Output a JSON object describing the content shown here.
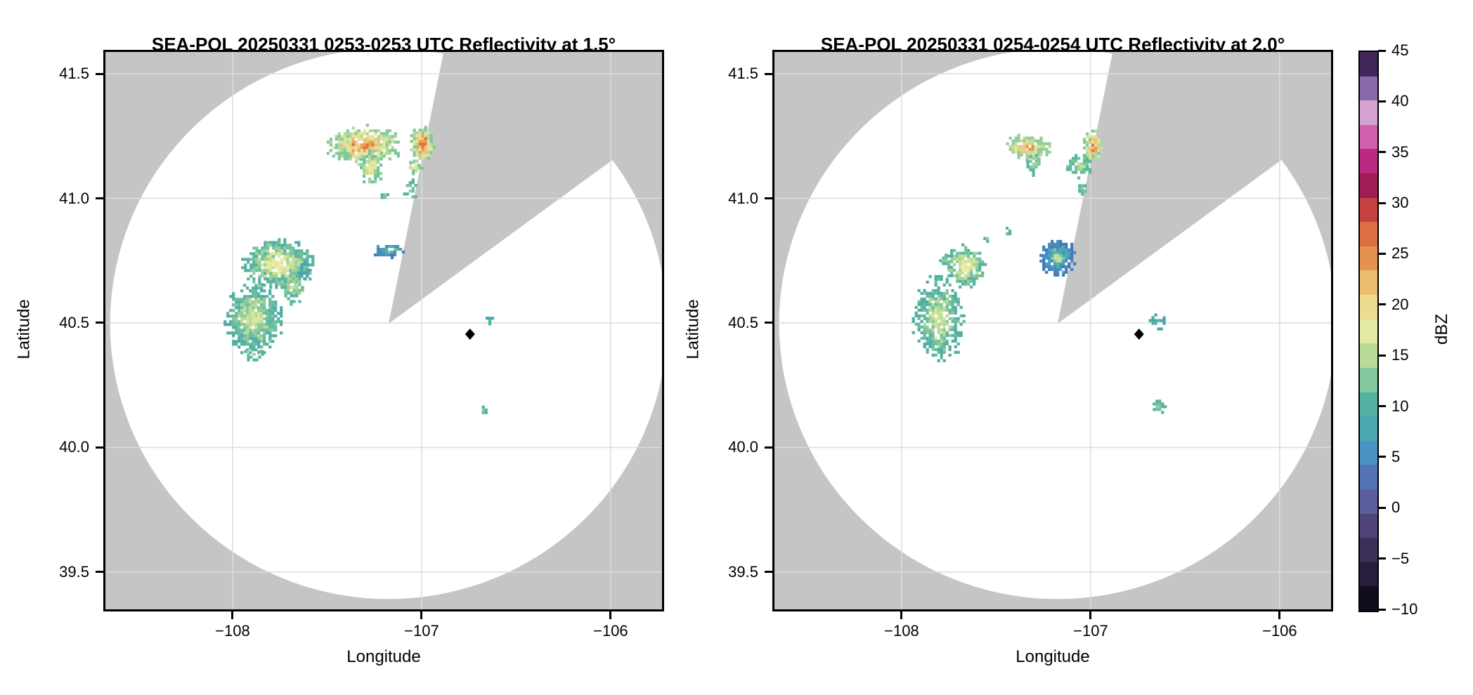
{
  "colors": {
    "outside_coverage_gray": "#c5c5c5",
    "coverage_white": "#ffffff",
    "gridline": "#dcdcdc",
    "spine": "#000000",
    "marker": "#000000"
  },
  "palettes": {
    "orangecore": [
      "#dc7544",
      "#e8a057",
      "#ecc377",
      "#e9e098",
      "#d9e69d",
      "#b0d89b",
      "#82c79c"
    ],
    "bandorange": [
      "#e29050",
      "#e7cf85",
      "#dfe89e",
      "#bedd9b",
      "#94cd9c"
    ],
    "yellow": [
      "#ebe8a0",
      "#dce79d",
      "#bedd9b",
      "#9ad09c",
      "#74c29d"
    ],
    "paleyellowcore": [
      "#eceda9",
      "#dfe89e",
      "#c3df9b",
      "#9ed19c",
      "#74c29d",
      "#55b2a2"
    ],
    "green_y": [
      "#c8e09b",
      "#a4d49b",
      "#7cc59c",
      "#5bb7a0"
    ],
    "green": [
      "#94cd9c",
      "#6fc09d",
      "#55b2a2"
    ],
    "greenbig": [
      "#d7e59c",
      "#b7db9c",
      "#8cca9c",
      "#66bc9e",
      "#50afa4"
    ],
    "blueedge": [
      "#c0de9b",
      "#86c89c",
      "#55b2a2",
      "#48a4b6",
      "#4a8ac2",
      "#4279bc"
    ],
    "teal": [
      "#54b3a4",
      "#4caba8",
      "#49a3b2"
    ]
  },
  "colorbar": {
    "label": "dBZ",
    "range": [
      -10,
      45
    ],
    "tick_values": [
      45,
      40,
      35,
      30,
      25,
      20,
      15,
      10,
      5,
      0,
      -5,
      -10
    ],
    "tick_labels": [
      "45",
      "40",
      "35",
      "30",
      "25",
      "20",
      "15",
      "10",
      "5",
      "0",
      "−5",
      "−10"
    ],
    "bands_bottom_to_top": [
      "#120d1d",
      "#281e3b",
      "#3c2f58",
      "#4f4379",
      "#5c5f9c",
      "#5574b5",
      "#4b93c0",
      "#49a7b2",
      "#54b2a2",
      "#83c79c",
      "#b9db9a",
      "#e2eaa3",
      "#ecdc90",
      "#ecbd6c",
      "#e5924f",
      "#dc6f44",
      "#c4413f",
      "#9e1d55",
      "#bb2a80",
      "#d060ae",
      "#d5a3d2",
      "#8a68ac",
      "#3f2759"
    ]
  },
  "chart_data": [
    {
      "type": "heatmap",
      "subtype": "radar_ppi_reflectivity",
      "title": "SEA-POL 20250331 0253-0253 UTC Reflectivity at 1.5°",
      "radar_name": "SEA-POL",
      "date": "20250331",
      "time_utc": "0253-0253",
      "elevation_deg": 1.5,
      "field": "Reflectivity",
      "units": "dBZ",
      "xlabel": "Longitude",
      "ylabel": "Latitude",
      "xlim": [
        -108.684,
        -105.717
      ],
      "ylim": [
        39.342,
        41.596
      ],
      "xticks": [
        -108,
        -107,
        -106
      ],
      "xtick_labels": [
        "−108",
        "−107",
        "−106"
      ],
      "yticks": [
        41.5,
        41.0,
        40.5,
        40.0,
        39.5
      ],
      "ytick_labels": [
        "41.5",
        "41.0",
        "40.5",
        "40.0",
        "39.5"
      ],
      "grid": true,
      "colorbar_range": [
        -10,
        45
      ],
      "radar": {
        "lon": -107.175,
        "lat": 40.497,
        "coverage_rlon_deg": 1.473,
        "coverage_rlat_deg": 1.105
      },
      "blocked_sector": {
        "apex": [
          -107.175,
          40.497
        ],
        "edge1_to": [
          -106.881,
          41.596
        ],
        "edge2_to": [
          -105.717,
          41.306
        ]
      },
      "marker": {
        "lon": -106.744,
        "lat": 40.455,
        "shape": "diamond"
      },
      "cells": [
        {
          "id": "nw-cluster",
          "lon": -107.305,
          "lat": 41.212,
          "rlon": 0.175,
          "rlat": 0.07,
          "palette": "orangecore",
          "density": 0.93,
          "seed": 11,
          "dbz_range": [
            10,
            27
          ]
        },
        {
          "id": "nw-tail",
          "lon": -107.264,
          "lat": 41.125,
          "rlon": 0.055,
          "rlat": 0.065,
          "palette": "yellow",
          "density": 0.82,
          "seed": 12,
          "dbz_range": [
            10,
            18
          ]
        },
        {
          "id": "ne-cell",
          "lon": -106.993,
          "lat": 41.215,
          "rlon": 0.06,
          "rlat": 0.07,
          "palette": "orangecore",
          "density": 0.95,
          "seed": 13,
          "dbz_range": [
            12,
            28
          ]
        },
        {
          "id": "ne-cell-south",
          "lon": -107.037,
          "lat": 41.127,
          "rlon": 0.036,
          "rlat": 0.028,
          "palette": "yellow",
          "density": 0.8,
          "seed": 14,
          "dbz_range": [
            10,
            16
          ]
        },
        {
          "id": "ne-specks",
          "lon": -107.056,
          "lat": 41.03,
          "rlon": 0.034,
          "rlat": 0.044,
          "palette": "green",
          "density": 0.5,
          "seed": 15,
          "dbz_range": [
            7,
            12
          ]
        },
        {
          "id": "speck-north",
          "lon": -107.19,
          "lat": 41.012,
          "rlon": 0.016,
          "rlat": 0.012,
          "palette": "green",
          "density": 0.8,
          "seed": 16,
          "dbz_range": [
            7,
            10
          ]
        },
        {
          "id": "west-cluster",
          "lon": -107.757,
          "lat": 40.733,
          "rlon": 0.175,
          "rlat": 0.09,
          "palette": "paleyellowcore",
          "density": 0.88,
          "seed": 17,
          "dbz_range": [
            8,
            18
          ]
        },
        {
          "id": "west-cluster-south",
          "lon": -107.684,
          "lat": 40.648,
          "rlon": 0.065,
          "rlat": 0.062,
          "palette": "green_y",
          "density": 0.62,
          "seed": 18,
          "dbz_range": [
            8,
            14
          ]
        },
        {
          "id": "west-teal",
          "lon": -107.617,
          "lat": 40.71,
          "rlon": 0.032,
          "rlat": 0.035,
          "palette": "teal",
          "density": 0.85,
          "seed": 19,
          "dbz_range": [
            6,
            10
          ]
        },
        {
          "id": "center-blue-cell",
          "lon": -107.171,
          "lat": 40.79,
          "rlon": 0.074,
          "rlat": 0.028,
          "palette": "blueedge",
          "density": 0.92,
          "seed": 20,
          "dbz_range": [
            4,
            16
          ]
        },
        {
          "id": "sw-cluster",
          "lon": -107.888,
          "lat": 40.513,
          "rlon": 0.137,
          "rlat": 0.127,
          "palette": "greenbig",
          "density": 0.9,
          "seed": 21,
          "dbz_range": [
            7,
            17
          ]
        },
        {
          "id": "sw-tail",
          "lon": -107.881,
          "lat": 40.376,
          "rlon": 0.05,
          "rlat": 0.032,
          "palette": "green",
          "density": 0.55,
          "seed": 22,
          "dbz_range": [
            7,
            12
          ]
        },
        {
          "id": "near-marker-specks",
          "lon": -106.63,
          "lat": 40.51,
          "rlon": 0.024,
          "rlat": 0.02,
          "palette": "teal",
          "density": 0.5,
          "seed": 23,
          "dbz_range": [
            6,
            10
          ]
        },
        {
          "id": "south-speck",
          "lon": -106.67,
          "lat": 40.148,
          "rlon": 0.018,
          "rlat": 0.013,
          "palette": "green",
          "density": 0.85,
          "seed": 24,
          "dbz_range": [
            7,
            11
          ]
        }
      ]
    },
    {
      "type": "heatmap",
      "subtype": "radar_ppi_reflectivity",
      "title": "SEA-POL 20250331 0254-0254 UTC Reflectivity at 2.0°",
      "radar_name": "SEA-POL",
      "date": "20250331",
      "time_utc": "0254-0254",
      "elevation_deg": 2.0,
      "field": "Reflectivity",
      "units": "dBZ",
      "xlabel": "Longitude",
      "ylabel": "Latitude",
      "xlim": [
        -108.684,
        -105.717
      ],
      "ylim": [
        39.342,
        41.596
      ],
      "xticks": [
        -108,
        -107,
        -106
      ],
      "xtick_labels": [
        "−108",
        "−107",
        "−106"
      ],
      "yticks": [
        41.5,
        41.0,
        40.5,
        40.0,
        39.5
      ],
      "ytick_labels": [
        "41.5",
        "41.0",
        "40.5",
        "40.0",
        "39.5"
      ],
      "grid": true,
      "colorbar_range": [
        -10,
        45
      ],
      "radar": {
        "lon": -107.175,
        "lat": 40.497,
        "coverage_rlon_deg": 1.473,
        "coverage_rlat_deg": 1.105
      },
      "blocked_sector": {
        "apex": [
          -107.175,
          40.497
        ],
        "edge1_to": [
          -106.881,
          41.596
        ],
        "edge2_to": [
          -105.717,
          41.306
        ]
      },
      "marker": {
        "lon": -106.744,
        "lat": 40.455,
        "shape": "diamond"
      },
      "cells": [
        {
          "id": "nw-band",
          "lon": -107.335,
          "lat": 41.206,
          "rlon": 0.105,
          "rlat": 0.047,
          "palette": "bandorange",
          "density": 0.9,
          "seed": 31,
          "dbz_range": [
            10,
            23
          ]
        },
        {
          "id": "nw-band-tail",
          "lon": -107.3,
          "lat": 41.14,
          "rlon": 0.032,
          "rlat": 0.042,
          "palette": "green_y",
          "density": 0.62,
          "seed": 32,
          "dbz_range": [
            8,
            14
          ]
        },
        {
          "id": "ne-cell",
          "lon": -106.985,
          "lat": 41.21,
          "rlon": 0.048,
          "rlat": 0.06,
          "palette": "orangecore",
          "density": 0.95,
          "seed": 33,
          "dbz_range": [
            12,
            28
          ]
        },
        {
          "id": "ne-cell-southwest",
          "lon": -107.06,
          "lat": 41.13,
          "rlon": 0.062,
          "rlat": 0.042,
          "palette": "green_y",
          "density": 0.75,
          "seed": 34,
          "dbz_range": [
            8,
            16
          ]
        },
        {
          "id": "ne-speck",
          "lon": -107.045,
          "lat": 41.04,
          "rlon": 0.028,
          "rlat": 0.022,
          "palette": "green",
          "density": 0.7,
          "seed": 35,
          "dbz_range": [
            7,
            11
          ]
        },
        {
          "id": "west-cluster",
          "lon": -107.665,
          "lat": 40.725,
          "rlon": 0.1,
          "rlat": 0.077,
          "palette": "paleyellowcore",
          "density": 0.85,
          "seed": 36,
          "dbz_range": [
            8,
            17
          ]
        },
        {
          "id": "west-specks",
          "lon": -107.77,
          "lat": 40.753,
          "rlon": 0.024,
          "rlat": 0.019,
          "palette": "green",
          "density": 0.7,
          "seed": 37,
          "dbz_range": [
            7,
            11
          ]
        },
        {
          "id": "north-speck-1",
          "lon": -107.539,
          "lat": 40.835,
          "rlon": 0.021,
          "rlat": 0.015,
          "palette": "green",
          "density": 0.68,
          "seed": 38,
          "dbz_range": [
            7,
            11
          ]
        },
        {
          "id": "north-speck-2",
          "lon": -107.438,
          "lat": 40.866,
          "rlon": 0.017,
          "rlat": 0.013,
          "palette": "green",
          "density": 0.72,
          "seed": 39,
          "dbz_range": [
            7,
            11
          ]
        },
        {
          "id": "center-teal-cell",
          "lon": -107.171,
          "lat": 40.762,
          "rlon": 0.092,
          "rlat": 0.065,
          "palette": "blueedge",
          "density": 0.93,
          "seed": 40,
          "dbz_range": [
            4,
            16
          ]
        },
        {
          "id": "sw-cluster",
          "lon": -107.803,
          "lat": 40.515,
          "rlon": 0.12,
          "rlat": 0.16,
          "palette": "greenbig",
          "density": 0.8,
          "seed": 41,
          "dbz_range": [
            7,
            16
          ]
        },
        {
          "id": "near-marker-specks",
          "lon": -106.643,
          "lat": 40.5,
          "rlon": 0.042,
          "rlat": 0.032,
          "palette": "teal",
          "density": 0.45,
          "seed": 42,
          "dbz_range": [
            6,
            10
          ]
        },
        {
          "id": "south-speck",
          "lon": -106.643,
          "lat": 40.163,
          "rlon": 0.036,
          "rlat": 0.023,
          "palette": "green",
          "density": 0.85,
          "seed": 43,
          "dbz_range": [
            7,
            11
          ]
        }
      ]
    }
  ]
}
